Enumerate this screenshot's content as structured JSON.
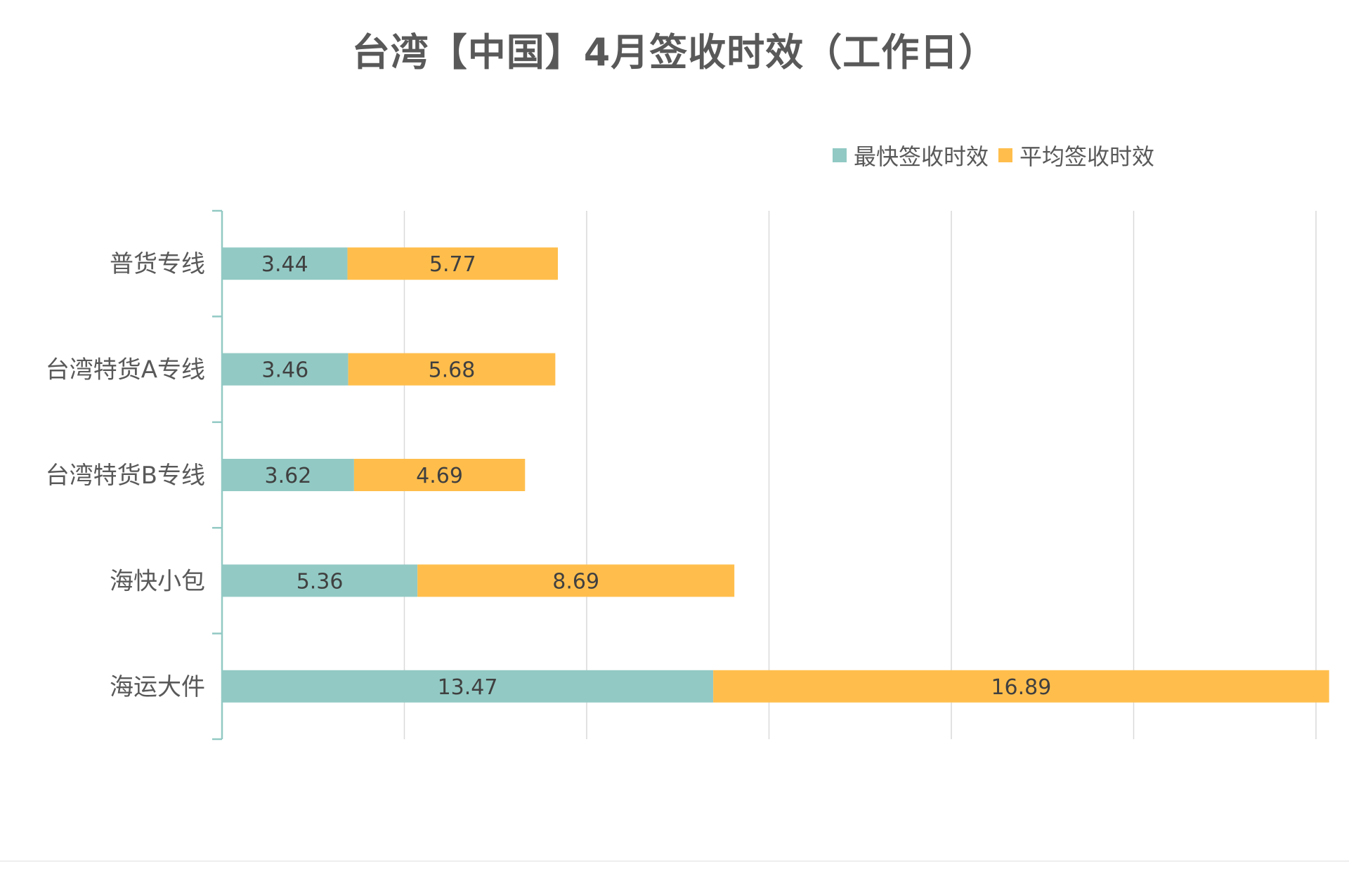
{
  "chart_data": {
    "type": "bar",
    "orientation": "horizontal",
    "stacked": true,
    "title": "台湾【中国】4月签收时效（工作日）",
    "categories": [
      "普货专线",
      "台湾特货A专线",
      "台湾特货B专线",
      "海快小包",
      "海运大件"
    ],
    "series": [
      {
        "name": "最快签收时效",
        "color": "#92C9C4",
        "values": [
          3.44,
          3.46,
          3.62,
          5.36,
          13.47
        ]
      },
      {
        "name": "平均签收时效",
        "color": "#FFBE4C",
        "values": [
          5.77,
          5.68,
          4.69,
          8.69,
          16.89
        ]
      }
    ],
    "value_labels": [
      [
        "3.44",
        "3.46",
        "3.62",
        "5.36",
        "13.47"
      ],
      [
        "5.77",
        "5.68",
        "4.69",
        "8.69",
        "16.89"
      ]
    ],
    "xlim": [
      0,
      30
    ],
    "grid": true,
    "legend_position": "top-right",
    "axis_color": "#92C9C4",
    "grid_color": "#d9d9d9"
  }
}
